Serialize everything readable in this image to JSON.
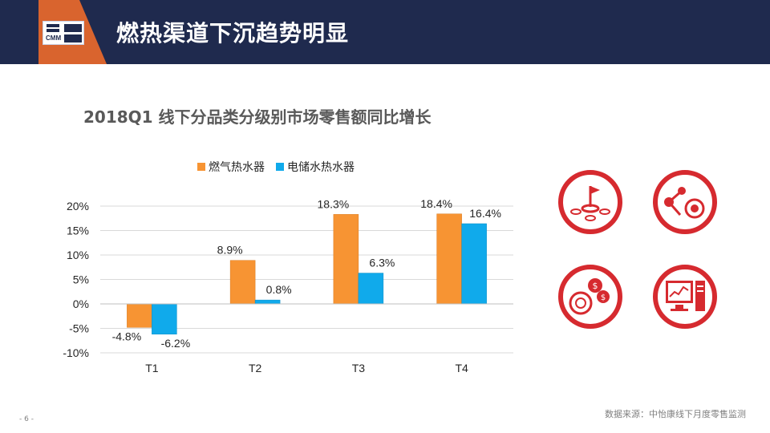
{
  "header": {
    "title": "燃热渠道下沉趋势明显",
    "logo_text": "CMM"
  },
  "chart_data": {
    "type": "bar",
    "title": "2018Q1 线下分品类分级别市场零售额同比增长",
    "categories": [
      "T1",
      "T2",
      "T3",
      "T4"
    ],
    "series": [
      {
        "name": "燃气热水器",
        "color": "#f79433",
        "values": [
          -4.8,
          8.9,
          18.3,
          18.4
        ],
        "labels": [
          "-4.8%",
          "8.9%",
          "18.3%",
          "18.4%"
        ]
      },
      {
        "name": "电储水热水器",
        "color": "#10aaeb",
        "values": [
          -6.2,
          0.8,
          6.3,
          16.4
        ],
        "labels": [
          "-6.2%",
          "0.8%",
          "6.3%",
          "16.4%"
        ]
      }
    ],
    "yticks": [
      -10,
      -5,
      0,
      5,
      10,
      15,
      20
    ],
    "ytick_labels": [
      "-10%",
      "-5%",
      "0%",
      "5%",
      "10%",
      "15%",
      "20%"
    ],
    "ylim": [
      -10,
      20
    ],
    "xlabel": "",
    "ylabel": "",
    "legend_position": "top"
  },
  "icons": {
    "color": "#d62a2f",
    "items": [
      "target-flag-icon",
      "network-target-icon",
      "coins-icon",
      "computer-chart-icon"
    ]
  },
  "footer": {
    "source": "数据来源：中怡康线下月度零售监测",
    "page_number": "- 6 -"
  }
}
